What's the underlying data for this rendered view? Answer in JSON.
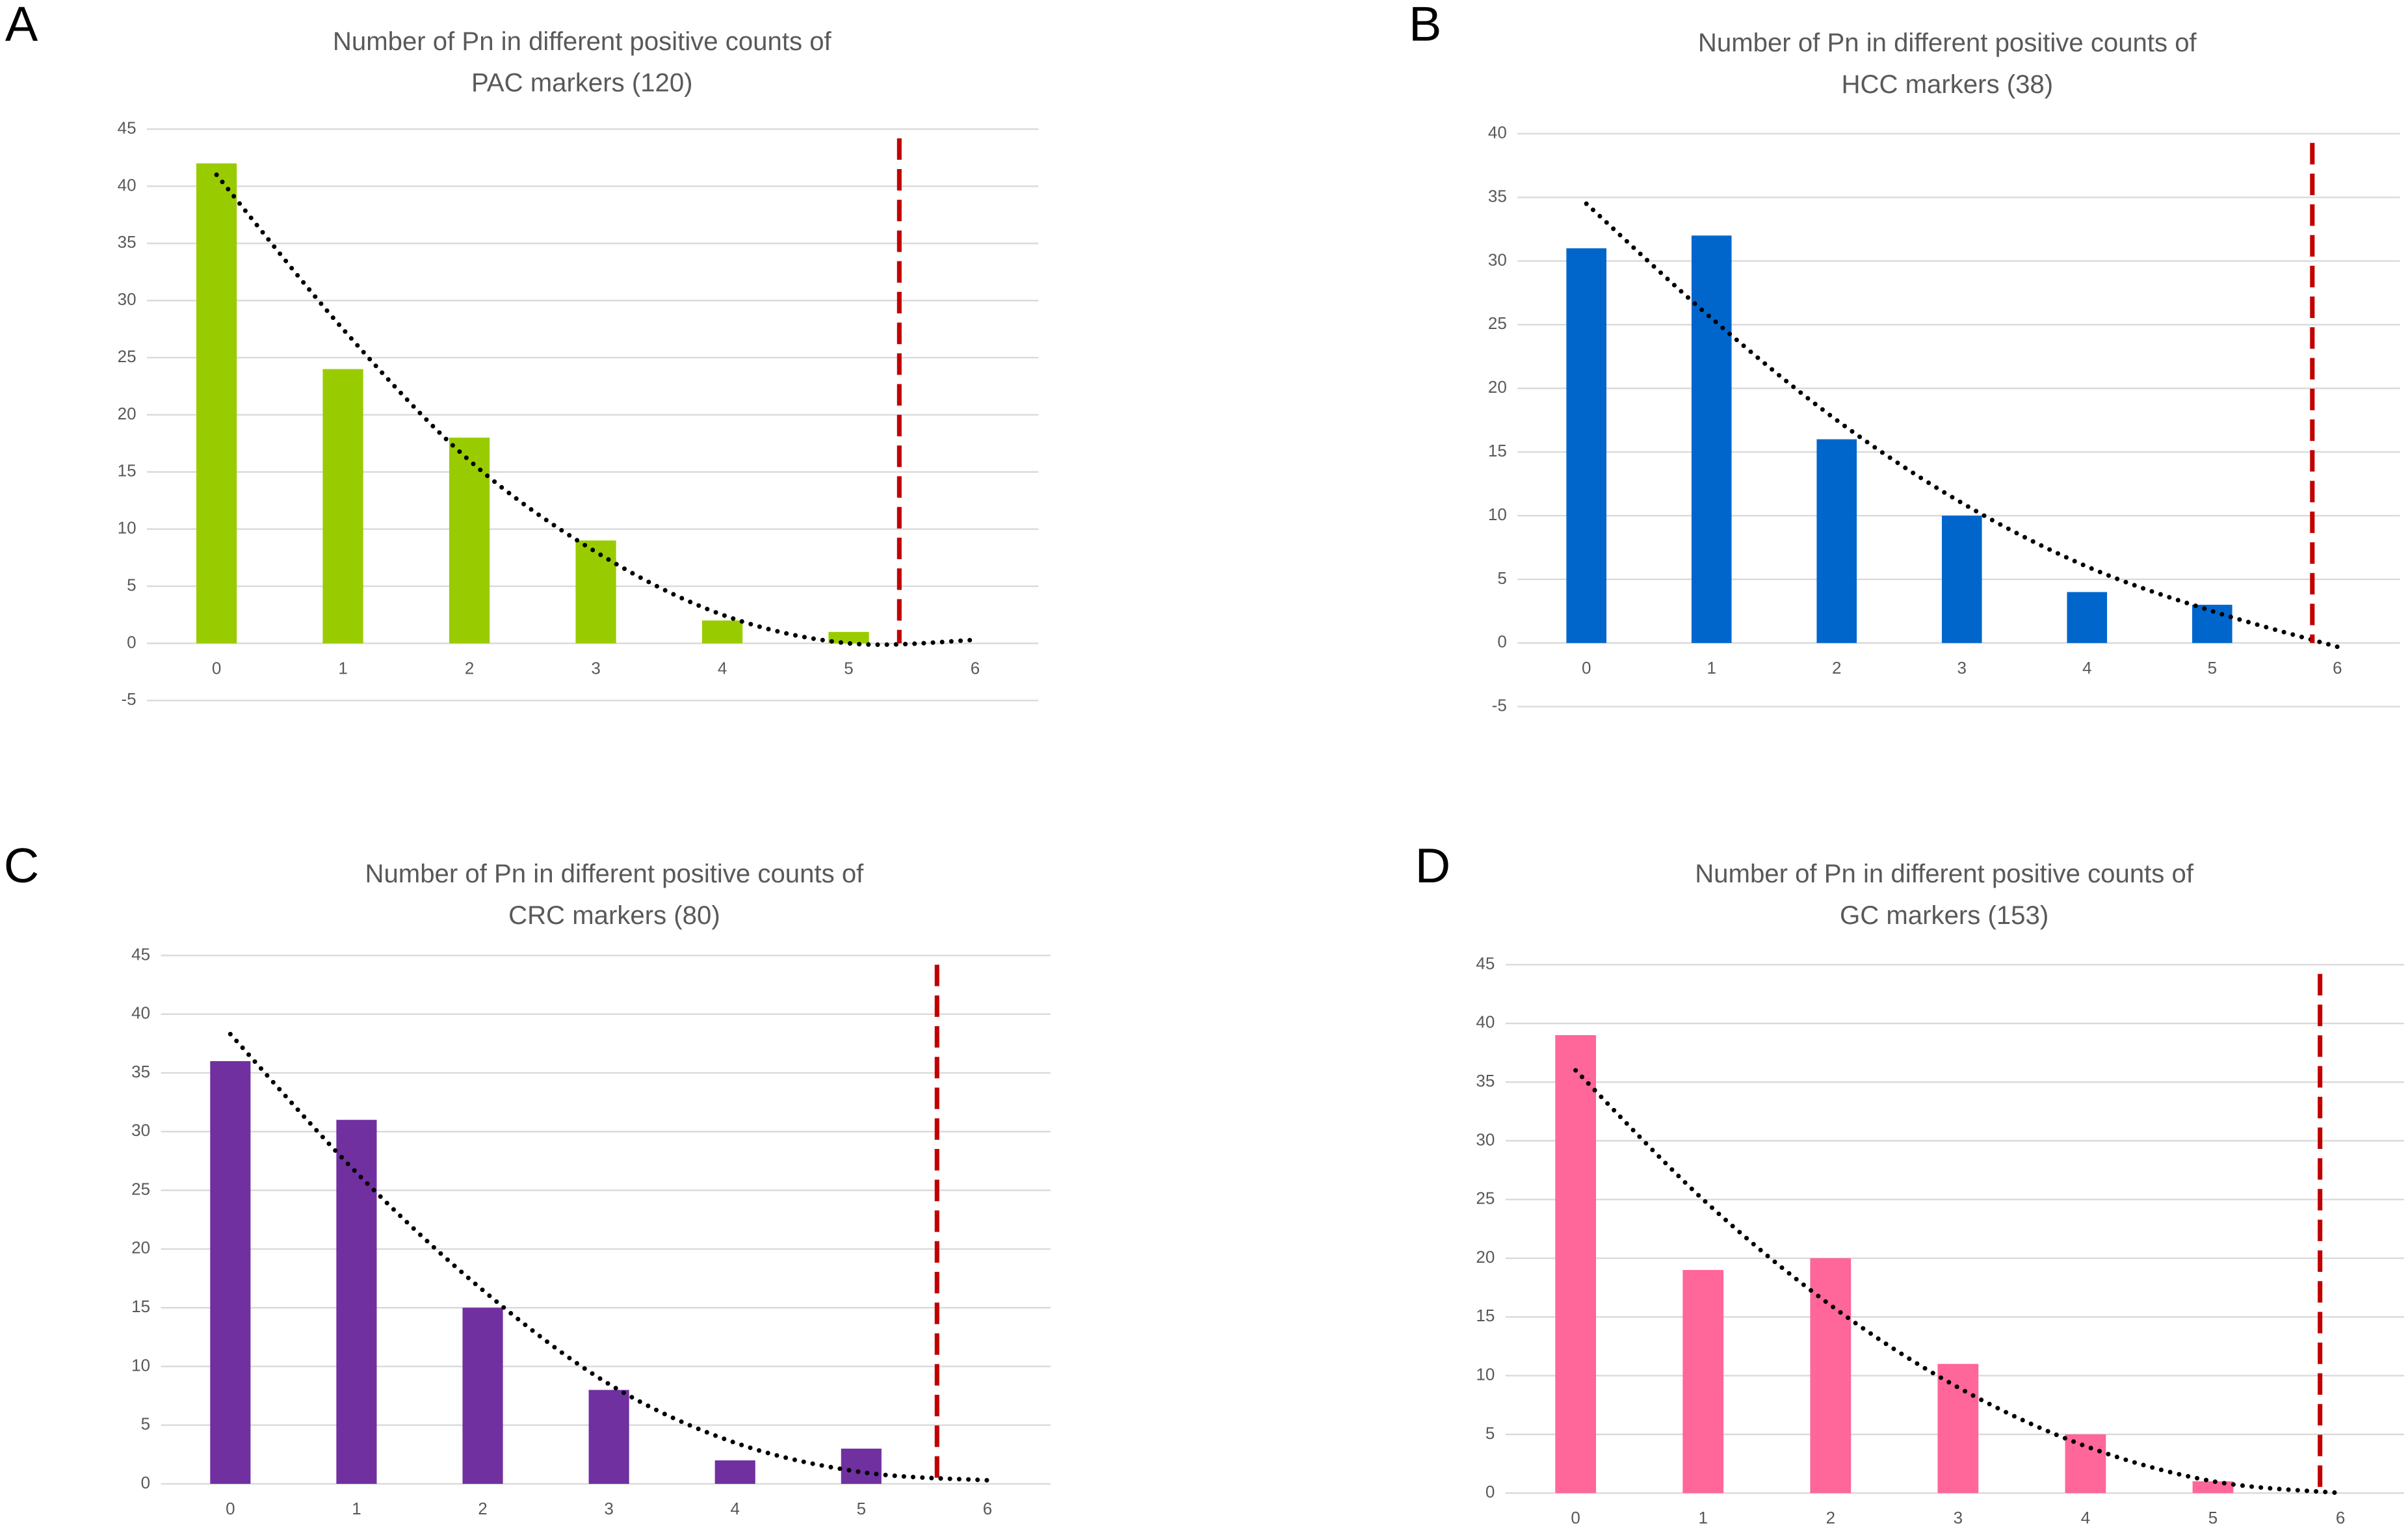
{
  "chart_data": [
    {
      "type": "bar",
      "label": "A",
      "title": [
        "Number of Pn in different positive counts of",
        "PAC markers (120)"
      ],
      "x": [
        0,
        1,
        2,
        3,
        4,
        5
      ],
      "values": [
        42,
        24,
        18,
        9,
        2,
        1
      ],
      "color": "#99cc00",
      "xlim": [
        -0.55,
        6.5
      ],
      "xticks": [
        0,
        1,
        2,
        3,
        4,
        5,
        6
      ],
      "ylim": [
        -5,
        45
      ],
      "yticks": [
        -5,
        0,
        5,
        10,
        15,
        20,
        25,
        30,
        35,
        40,
        45
      ],
      "grid": true,
      "trendline": {
        "x": [
          0,
          1,
          2,
          3,
          4,
          5,
          6
        ],
        "values": [
          41,
          27.5,
          16,
          8,
          2.5,
          0,
          0.3
        ]
      },
      "threshold_x": 5.4,
      "threshold_color": "#c00000"
    },
    {
      "type": "bar",
      "label": "B",
      "title": [
        "Number of Pn in different positive counts of",
        "HCC markers (38)"
      ],
      "x": [
        0,
        1,
        2,
        3,
        4,
        5
      ],
      "values": [
        31,
        32,
        16,
        10,
        4,
        3
      ],
      "color": "#0066cc",
      "xlim": [
        -0.55,
        6.5
      ],
      "xticks": [
        0,
        1,
        2,
        3,
        4,
        5,
        6
      ],
      "ylim": [
        -5,
        40
      ],
      "yticks": [
        -5,
        0,
        5,
        10,
        15,
        20,
        25,
        30,
        35,
        40
      ],
      "grid": true,
      "trendline": {
        "x": [
          0,
          1,
          2,
          3,
          4,
          5,
          6
        ],
        "values": [
          34.5,
          25.5,
          17.5,
          11,
          6,
          2.5,
          -0.3
        ]
      },
      "threshold_x": 5.8,
      "threshold_color": "#c00000"
    },
    {
      "type": "bar",
      "label": "C",
      "title": [
        "Number of Pn in different positive counts of",
        "CRC markers (80)"
      ],
      "x": [
        0,
        1,
        2,
        3,
        4,
        5
      ],
      "values": [
        36,
        31,
        15,
        8,
        2,
        3
      ],
      "color": "#7030a0",
      "xlim": [
        -0.55,
        6.5
      ],
      "xticks": [
        0,
        1,
        2,
        3,
        4,
        5,
        6
      ],
      "ylim": [
        0,
        45
      ],
      "yticks": [
        0,
        5,
        10,
        15,
        20,
        25,
        30,
        35,
        40,
        45
      ],
      "grid": true,
      "trendline": {
        "x": [
          0,
          1,
          2,
          3,
          4,
          5,
          6
        ],
        "values": [
          38.3,
          26.5,
          16.5,
          8.5,
          3.5,
          1,
          0.3
        ]
      },
      "threshold_x": 5.6,
      "threshold_color": "#c00000"
    },
    {
      "type": "bar",
      "label": "D",
      "title": [
        "Number of Pn in different positive counts of",
        "GC markers (153)"
      ],
      "x": [
        0,
        1,
        2,
        3,
        4,
        5
      ],
      "values": [
        39,
        19,
        20,
        11,
        5,
        1
      ],
      "color": "#ff6699",
      "xlim": [
        -0.55,
        6.5
      ],
      "xticks": [
        0,
        1,
        2,
        3,
        4,
        5,
        6
      ],
      "ylim": [
        0,
        45
      ],
      "yticks": [
        0,
        5,
        10,
        15,
        20,
        25,
        30,
        35,
        40,
        45
      ],
      "grid": true,
      "trendline": {
        "x": [
          0,
          1,
          2,
          3,
          4,
          5,
          6
        ],
        "values": [
          36,
          25,
          16,
          9,
          4,
          1,
          0
        ]
      },
      "threshold_x": 5.84,
      "threshold_color": "#c00000"
    }
  ]
}
